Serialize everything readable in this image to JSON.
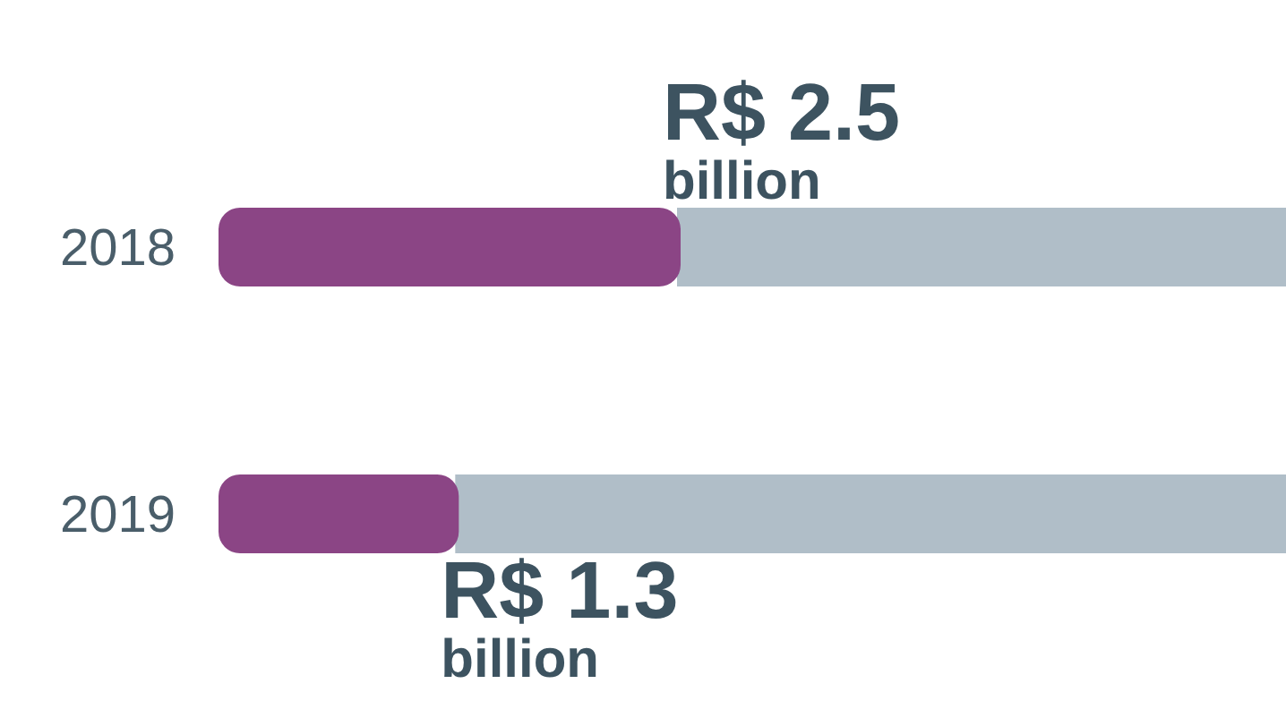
{
  "chart_data": {
    "type": "bar",
    "orientation": "horizontal",
    "categories": [
      "2018",
      "2019"
    ],
    "values": [
      2500000000,
      1300000000
    ],
    "color": "#8b4585",
    "value_labels": [
      "R$ 2.5 billion",
      "R$ 1.3 billion"
    ]
  }
}
